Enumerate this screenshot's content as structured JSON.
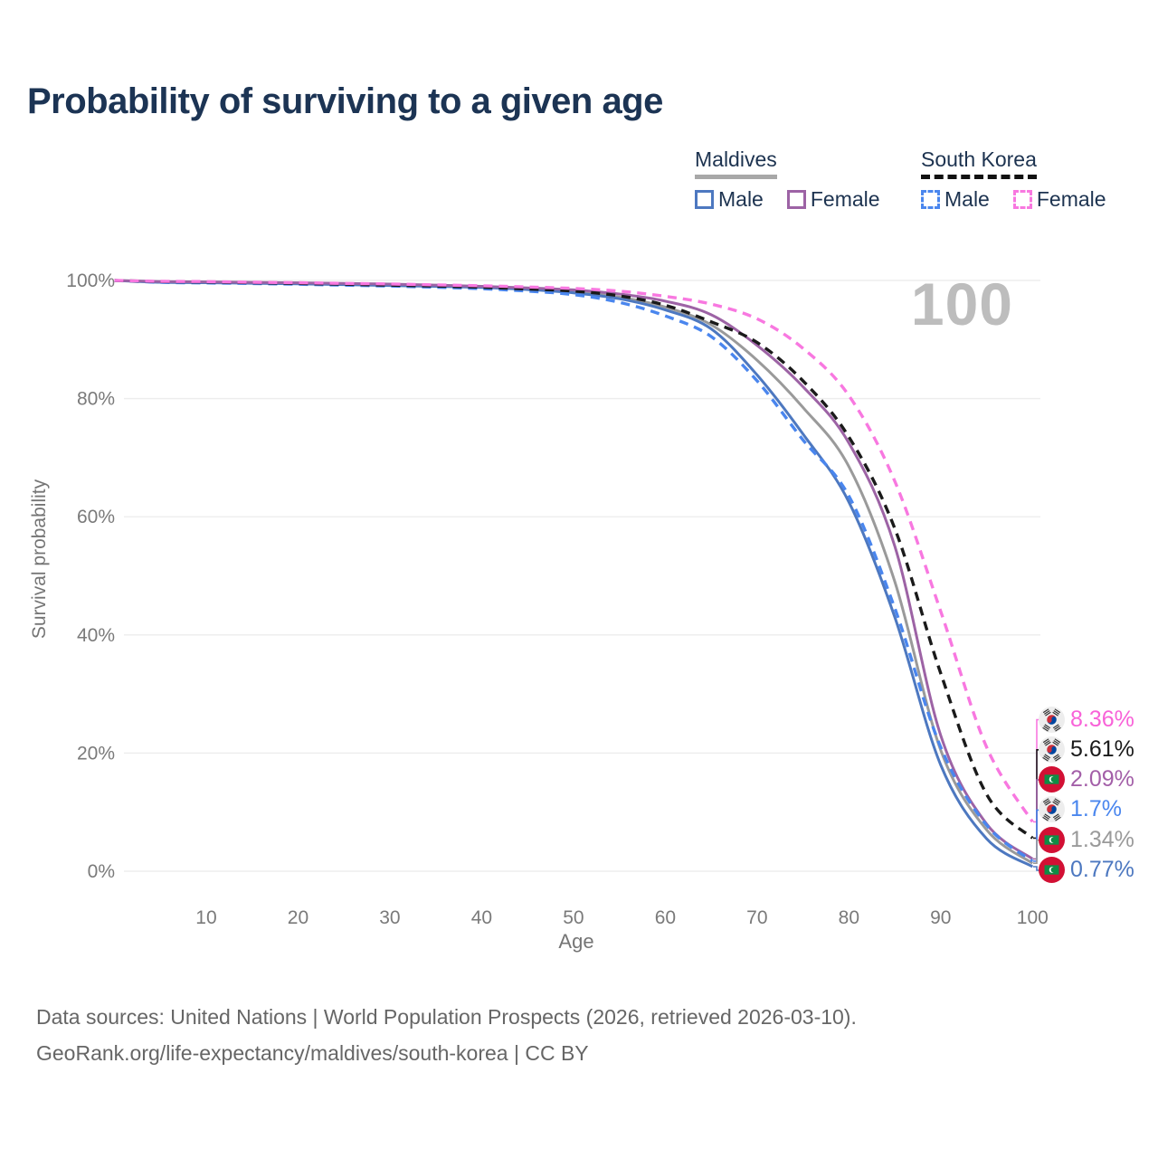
{
  "title": "Probability of surviving to a given age",
  "watermark": "100",
  "legend": {
    "groups": [
      {
        "label": "Maldives",
        "underline_style": "solid",
        "underline_color": "#a8a8a8",
        "items": [
          {
            "label": "Male",
            "color": "#4d78c0",
            "style": "solid"
          },
          {
            "label": "Female",
            "color": "#9d63a5",
            "style": "solid"
          }
        ]
      },
      {
        "label": "South Korea",
        "underline_style": "dashed",
        "underline_color": "#111111",
        "items": [
          {
            "label": "Male",
            "color": "#4a86ee",
            "style": "dashed"
          },
          {
            "label": "Female",
            "color": "#f878e0",
            "style": "dashed"
          }
        ]
      }
    ]
  },
  "chart_data": {
    "type": "line",
    "title": "Probability of surviving to a given age",
    "xlabel": "Age",
    "ylabel": "Survival probability",
    "xlim": [
      0,
      100
    ],
    "ylim": [
      0,
      100
    ],
    "grid": "horizontal",
    "legend_position": "top-right",
    "x_ticks": [
      10,
      20,
      30,
      40,
      50,
      60,
      70,
      80,
      90,
      100
    ],
    "y_ticks": [
      0,
      20,
      40,
      60,
      80,
      100
    ],
    "y_tick_labels": [
      "0%",
      "20%",
      "40%",
      "60%",
      "80%",
      "100%"
    ],
    "x": [
      0,
      5,
      10,
      15,
      20,
      25,
      30,
      35,
      40,
      45,
      50,
      55,
      60,
      65,
      70,
      75,
      80,
      85,
      90,
      95,
      100
    ],
    "series": [
      {
        "key": "mv_both",
        "name": "Maldives (both sexes)",
        "country": "Maldives",
        "color": "#9a9a9a",
        "dashed": false,
        "values": [
          100,
          99.78,
          99.7,
          99.6,
          99.5,
          99.36,
          99.22,
          99.05,
          98.85,
          98.55,
          98.1,
          97.2,
          95.5,
          92.5,
          86.5,
          78.5,
          68.5,
          49,
          20.5,
          7,
          1.34
        ],
        "end_label": "1.34%"
      },
      {
        "key": "mv_male",
        "name": "Maldives Male",
        "country": "Maldives",
        "color": "#4d78c0",
        "dashed": false,
        "values": [
          100,
          99.7,
          99.62,
          99.52,
          99.42,
          99.3,
          99.15,
          99.0,
          98.8,
          98.45,
          97.9,
          96.9,
          95.0,
          91.8,
          84.0,
          74.0,
          62.5,
          43,
          18,
          5.5,
          0.77
        ],
        "end_label": "0.77%"
      },
      {
        "key": "mv_female",
        "name": "Maldives Female",
        "country": "Maldives",
        "color": "#9d63a5",
        "dashed": false,
        "values": [
          100,
          99.82,
          99.75,
          99.68,
          99.6,
          99.5,
          99.38,
          99.22,
          99.0,
          98.75,
          98.4,
          97.7,
          96.5,
          94.2,
          89.0,
          82.0,
          72.5,
          55,
          23,
          8,
          2.09
        ],
        "end_label": "2.09%"
      },
      {
        "key": "kr_male",
        "name": "South Korea Male",
        "country": "South Korea",
        "color": "#4a86ee",
        "dashed": true,
        "values": [
          100,
          99.68,
          99.58,
          99.48,
          99.35,
          99.2,
          99.05,
          98.85,
          98.6,
          98.2,
          97.6,
          96.3,
          94.0,
          90.5,
          83.0,
          73.0,
          63.5,
          44.5,
          21,
          7.8,
          1.7
        ],
        "end_label": "1.7%"
      },
      {
        "key": "kr_both",
        "name": "South Korea (both sexes)",
        "country": "South Korea",
        "color": "#1a1a1a",
        "dashed": true,
        "values": [
          100,
          99.8,
          99.72,
          99.62,
          99.5,
          99.35,
          99.2,
          99.05,
          98.85,
          98.55,
          98.2,
          97.4,
          95.8,
          93.0,
          89.5,
          83.0,
          73.5,
          58,
          33.5,
          13,
          5.61
        ],
        "end_label": "5.61%"
      },
      {
        "key": "kr_female",
        "name": "South Korea Female",
        "country": "South Korea",
        "color": "#f878e0",
        "dashed": true,
        "values": [
          100,
          99.85,
          99.8,
          99.7,
          99.62,
          99.5,
          99.4,
          99.25,
          99.1,
          98.9,
          98.65,
          98.2,
          97.3,
          96.0,
          93.5,
          88.5,
          80.5,
          66,
          44,
          21,
          8.36
        ],
        "end_label": "8.36%"
      }
    ]
  },
  "end_labels": [
    {
      "series": "kr_female",
      "label": "8.36%",
      "color": "#f862d8",
      "flag": "south-korea"
    },
    {
      "series": "kr_both",
      "label": "5.61%",
      "color": "#1a1a1a",
      "flag": "south-korea"
    },
    {
      "series": "mv_female",
      "label": "2.09%",
      "color": "#a35fa8",
      "flag": "maldives"
    },
    {
      "series": "kr_male",
      "label": "1.7%",
      "color": "#4a86ee",
      "flag": "south-korea"
    },
    {
      "series": "mv_both",
      "label": "1.34%",
      "color": "#9a9a9a",
      "flag": "maldives"
    },
    {
      "series": "mv_male",
      "label": "0.77%",
      "color": "#4d78c0",
      "flag": "maldives"
    }
  ],
  "footer": {
    "line1": "Data sources: United Nations | World Population Prospects (2026, retrieved 2026-03-10).",
    "line2": "GeoRank.org/life-expectancy/maldives/south-korea | CC BY"
  }
}
